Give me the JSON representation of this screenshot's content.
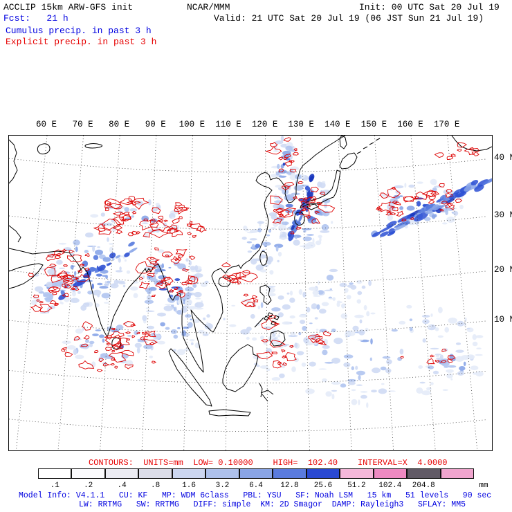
{
  "header": {
    "title": "ACCLIP 15km ARW-GFS init",
    "org": "NCAR/MMM",
    "init": "Init: 00 UTC Sat 20 Jul 19",
    "fcst": "Fcst:   21 h",
    "valid": "Valid: 21 UTC Sat 20 Jul 19 (06 JST Sun 21 Jul 19)",
    "field_cumulus": "Cumulus precip. in past 3 h",
    "field_explicit": "Explicit precip. in past 3 h"
  },
  "map": {
    "lon_labels": [
      "60 E",
      "70 E",
      "80 E",
      "90 E",
      "100 E",
      "110 E",
      "120 E",
      "130 E",
      "140 E",
      "150 E",
      "160 E",
      "170 E"
    ],
    "lat_labels": [
      "40 N",
      "30 N",
      "20 N",
      "10 N"
    ]
  },
  "legend": {
    "contours": "CONTOURS:  UNITS=mm  LOW= 0.10000    HIGH=  102.40    INTERVAL=X  4.0000",
    "tick_labels": [
      ".1",
      ".2",
      ".4",
      ".8",
      "1.6",
      "3.2",
      "6.4",
      "12.8",
      "25.6",
      "51.2",
      "102.4",
      "204.8"
    ],
    "units_label": "mm",
    "box_colors": [
      "#ffffff",
      "#fbfbfd",
      "#ececf3",
      "#dcdde9",
      "#ccd6f0",
      "#aec1ec",
      "#8aa5e6",
      "#5a7bde",
      "#2a49d2",
      "#f5b8da",
      "#ee8ac2",
      "#615a66",
      "#f0a5ce"
    ]
  },
  "footer": {
    "line1": "Model Info: V4.1.1   CU: KF   MP: WDM 6class   PBL: YSU   SF: Noah LSM   15 km   51 levels   90 sec",
    "line2": "LW: RRTMG   SW: RRTMG   DIFF: simple  KM: 2D Smagor  DAMP: Rayleigh3   SFLAY: MM5"
  },
  "colors": {
    "text_blue": "#0000e0",
    "text_red": "#e60000",
    "contour_red": "#dd0000"
  }
}
